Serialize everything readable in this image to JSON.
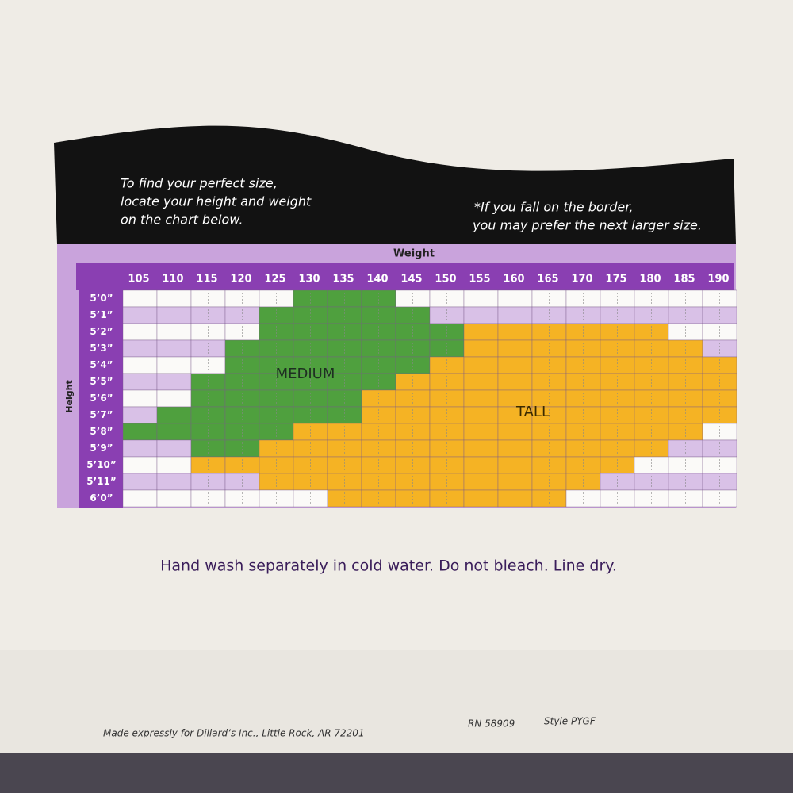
{
  "header": {
    "instructions": [
      "To find your perfect size,",
      "locate your height and weight",
      "on the chart below."
    ],
    "note": [
      "*If you fall on the border,",
      "you may prefer the next larger size."
    ]
  },
  "table": {
    "weight_label": "Weight",
    "height_label": "Height",
    "weights": [
      "105",
      "110",
      "115",
      "120",
      "125",
      "130",
      "135",
      "140",
      "145",
      "150",
      "155",
      "160",
      "165",
      "170",
      "175",
      "180",
      "185",
      "190"
    ],
    "heights": [
      "5’0”",
      "5’1”",
      "5’2”",
      "5’3”",
      "5’4”",
      "5’5”",
      "5’6”",
      "5’7”",
      "5’8”",
      "5’9”",
      "5’10”",
      "5’11”",
      "6’0”"
    ],
    "regions": [
      "MEDIUM",
      "TALL"
    ]
  },
  "care": "Hand wash separately in cold water. Do not bleach. Line dry.",
  "footer": [
    "Made expressly for Dillard’s Inc., Little Rock, AR 72201",
    "RN 58909",
    "Style PYGF"
  ]
}
